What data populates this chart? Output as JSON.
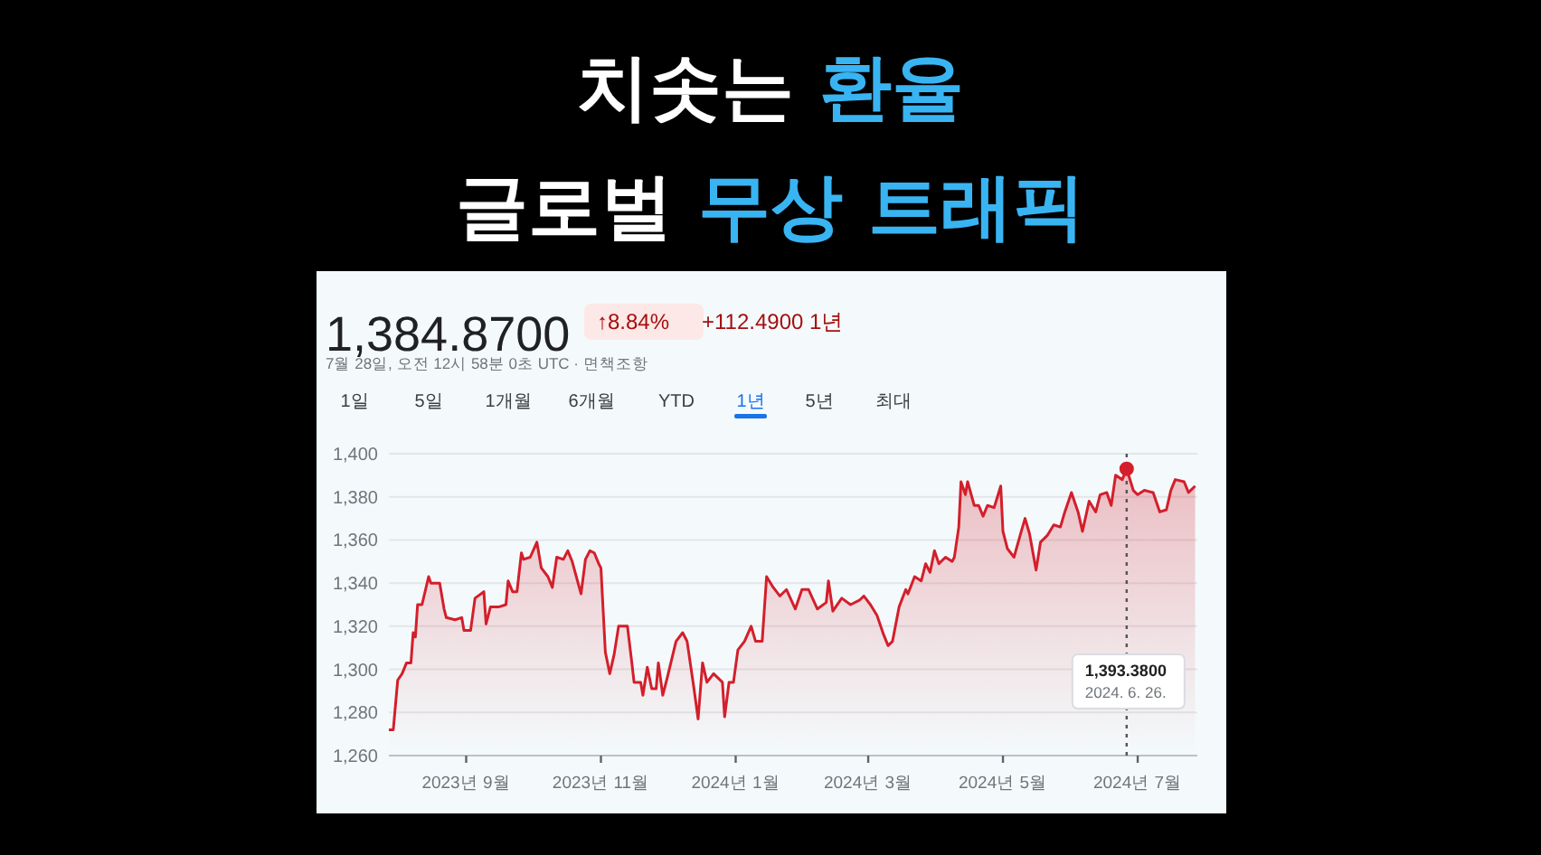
{
  "chart_data": {
    "type": "area",
    "title": "치솟는 환율",
    "subtitle": "글로벌 무상 트래픽",
    "x": [
      "2023-07-28",
      "2023-07-30",
      "2023-08-01",
      "2023-08-03",
      "2023-08-05",
      "2023-08-07",
      "2023-08-08",
      "2023-08-09",
      "2023-08-10",
      "2023-08-12",
      "2023-08-15",
      "2023-08-16",
      "2023-08-20",
      "2023-08-22",
      "2023-08-23",
      "2023-08-27",
      "2023-08-30",
      "2023-08-31",
      "2023-09-03",
      "2023-09-05",
      "2023-09-09",
      "2023-09-10",
      "2023-09-12",
      "2023-09-16",
      "2023-09-19",
      "2023-09-20",
      "2023-09-22",
      "2023-09-24",
      "2023-09-26",
      "2023-09-27",
      "2023-09-30",
      "2023-10-03",
      "2023-10-05",
      "2023-10-08",
      "2023-10-10",
      "2023-10-12",
      "2023-10-15",
      "2023-10-17",
      "2023-10-19",
      "2023-10-23",
      "2023-10-25",
      "2023-10-27",
      "2023-10-29",
      "2023-10-31",
      "2023-11-01",
      "2023-11-03",
      "2023-11-05",
      "2023-11-07",
      "2023-11-09",
      "2023-11-13",
      "2023-11-15",
      "2023-11-16",
      "2023-11-19",
      "2023-11-20",
      "2023-11-22",
      "2023-11-24",
      "2023-11-26",
      "2023-11-27",
      "2023-11-29",
      "2023-12-01",
      "2023-12-05",
      "2023-12-08",
      "2023-12-10",
      "2023-12-13",
      "2023-12-15",
      "2023-12-17",
      "2023-12-19",
      "2023-12-22",
      "2023-12-24",
      "2023-12-26",
      "2023-12-27",
      "2023-12-29",
      "2023-12-31",
      "2024-01-02",
      "2024-01-05",
      "2024-01-08",
      "2024-01-10",
      "2024-01-13",
      "2024-01-15",
      "2024-01-18",
      "2024-01-21",
      "2024-01-24",
      "2024-01-28",
      "2024-01-31",
      "2024-02-03",
      "2024-02-07",
      "2024-02-11",
      "2024-02-12",
      "2024-02-14",
      "2024-02-18",
      "2024-02-22",
      "2024-02-26",
      "2024-02-28",
      "2024-03-02",
      "2024-03-05",
      "2024-03-08",
      "2024-03-10",
      "2024-03-12",
      "2024-03-15",
      "2024-03-18",
      "2024-03-19",
      "2024-03-22",
      "2024-03-25",
      "2024-03-27",
      "2024-03-29",
      "2024-03-31",
      "2024-04-02",
      "2024-04-05",
      "2024-04-08",
      "2024-04-09",
      "2024-04-11",
      "2024-04-12",
      "2024-04-14",
      "2024-04-15",
      "2024-04-18",
      "2024-04-20",
      "2024-04-22",
      "2024-04-24",
      "2024-04-27",
      "2024-04-30",
      "2024-05-01",
      "2024-05-03",
      "2024-05-06",
      "2024-05-09",
      "2024-05-11",
      "2024-05-13",
      "2024-05-16",
      "2024-05-18",
      "2024-05-21",
      "2024-05-24",
      "2024-05-27",
      "2024-05-29",
      "2024-06-01",
      "2024-06-04",
      "2024-06-06",
      "2024-06-09",
      "2024-06-12",
      "2024-06-14",
      "2024-06-17",
      "2024-06-19",
      "2024-06-21",
      "2024-06-24",
      "2024-06-26",
      "2024-06-29",
      "2024-07-01",
      "2024-07-04",
      "2024-07-08",
      "2024-07-11",
      "2024-07-14",
      "2024-07-16",
      "2024-07-18",
      "2024-07-22",
      "2024-07-24",
      "2024-07-27"
    ],
    "series": [
      {
        "color": "#d31f2b",
        "values": [
          1272,
          1272,
          1295,
          1298,
          1303,
          1303,
          1317,
          1315,
          1330,
          1330,
          1343,
          1340,
          1340,
          1328,
          1324,
          1323,
          1324,
          1318,
          1318,
          1333,
          1336,
          1321,
          1329,
          1329,
          1330,
          1341,
          1336,
          1336,
          1354,
          1351,
          1352,
          1359,
          1347,
          1343,
          1338,
          1352,
          1351,
          1355,
          1350,
          1335,
          1351,
          1355,
          1354,
          1349,
          1347,
          1308,
          1298,
          1307,
          1320,
          1320,
          1303,
          1294,
          1294,
          1288,
          1301,
          1291,
          1291,
          1303,
          1288,
          1296,
          1313,
          1317,
          1313,
          1292,
          1277,
          1303,
          1294,
          1298,
          1296,
          1294,
          1278,
          1294,
          1294,
          1309,
          1313,
          1320,
          1313,
          1313,
          1343,
          1338,
          1334,
          1337,
          1328,
          1337,
          1337,
          1328,
          1331,
          1341,
          1327,
          1333,
          1330,
          1332,
          1334,
          1330,
          1325,
          1316,
          1311,
          1313,
          1329,
          1337,
          1335,
          1343,
          1341,
          1349,
          1345,
          1355,
          1349,
          1352,
          1350,
          1352,
          1366,
          1387,
          1381,
          1387,
          1376,
          1376,
          1371,
          1376,
          1375,
          1385,
          1364,
          1356,
          1352,
          1363,
          1370,
          1363,
          1346,
          1359,
          1362,
          1367,
          1366,
          1373,
          1382,
          1373,
          1364,
          1378,
          1373,
          1381,
          1382,
          1376,
          1390,
          1388,
          1393,
          1383,
          1381,
          1383,
          1382,
          1373,
          1374,
          1383,
          1388,
          1387,
          1382,
          1385
        ]
      }
    ],
    "xlim": [
      "2023-07-28",
      "2024-07-28"
    ],
    "xticks": [
      {
        "value": "2023-09-01",
        "label": "2023년 9월"
      },
      {
        "value": "2023-11-01",
        "label": "2023년 11월"
      },
      {
        "value": "2024-01-01",
        "label": "2024년 1월"
      },
      {
        "value": "2024-03-01",
        "label": "2024년 3월"
      },
      {
        "value": "2024-05-01",
        "label": "2024년 5월"
      },
      {
        "value": "2024-07-01",
        "label": "2024년 7월"
      }
    ],
    "ylim": [
      1260,
      1400
    ],
    "yticks": [
      {
        "value": 1260,
        "label": "1,260"
      },
      {
        "value": 1280,
        "label": "1,280"
      },
      {
        "value": 1300,
        "label": "1,300"
      },
      {
        "value": 1320,
        "label": "1,320"
      },
      {
        "value": 1340,
        "label": "1,340"
      },
      {
        "value": 1360,
        "label": "1,360"
      },
      {
        "value": 1380,
        "label": "1,380"
      },
      {
        "value": 1400,
        "label": "1,400"
      }
    ],
    "grid": "y",
    "ref_lines": [
      {
        "axis": "x",
        "value": "2024-06-26",
        "color": "#555555",
        "line_style": "dotted"
      }
    ],
    "annotations": [
      "1,384.8700",
      "↑8.84%",
      "+112.4900 1년",
      "7월 28일, 오전 12시 58분 0초 UTC · 면책조항",
      "1일",
      "5일",
      "1개월",
      "6개월",
      "YTD",
      "1년",
      "5년",
      "최대",
      "1,393.3800\n2024. 6. 26."
    ]
  }
}
